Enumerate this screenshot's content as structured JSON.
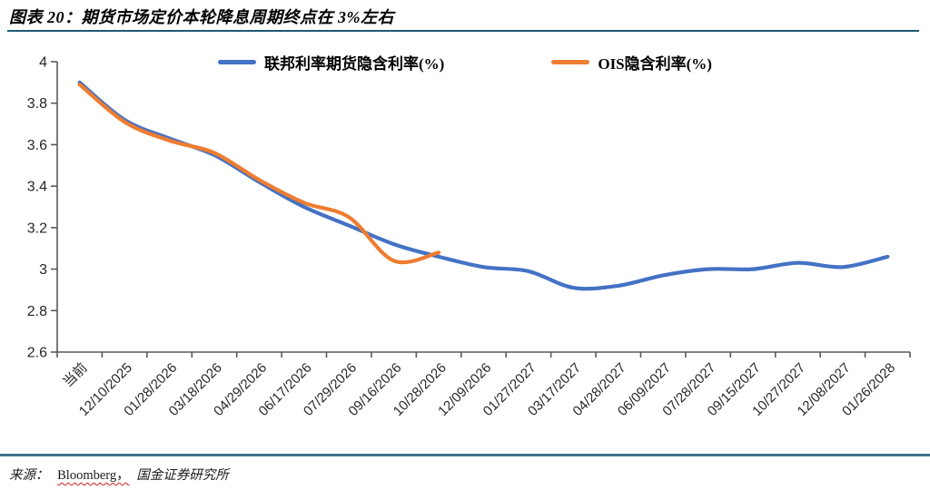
{
  "header": {
    "title": "图表 20：期货市场定价本轮降息周期终点在 3%左右"
  },
  "footer": {
    "source_prefix": "来源：",
    "source_bloomberg": "Bloomberg，",
    "source_institution": "国金证券研究所"
  },
  "colors": {
    "series_blue": "#4472C4",
    "series_orange": "#ED7D31",
    "header_rule": "#1C5A78",
    "footer_rule": "#44708A",
    "axis": "#595959",
    "tick_label": "#262626"
  },
  "chart_data": {
    "type": "line",
    "title": "期货市场定价本轮降息周期终点在3%左右",
    "xlabel": "",
    "ylabel": "",
    "ylim": [
      2.6,
      4.0
    ],
    "ytick_step": 0.2,
    "ytick_labels": [
      "4",
      "3.8",
      "3.6",
      "3.4",
      "3.2",
      "3",
      "2.8",
      "2.6"
    ],
    "grid": false,
    "legend_position": "top",
    "categories": [
      "当前",
      "12/10/2025",
      "01/28/2026",
      "03/18/2026",
      "04/29/2026",
      "06/17/2026",
      "07/29/2026",
      "09/16/2026",
      "10/28/2026",
      "12/09/2026",
      "01/27/2027",
      "03/17/2027",
      "04/28/2027",
      "06/09/2027",
      "07/28/2027",
      "09/15/2027",
      "10/27/2027",
      "12/08/2027",
      "01/26/2028"
    ],
    "series": [
      {
        "name": "联邦利率期货隐含利率(%)",
        "color": "#4472C4",
        "values": [
          3.9,
          3.72,
          3.63,
          3.55,
          3.42,
          3.3,
          3.21,
          3.12,
          3.06,
          3.01,
          2.99,
          2.91,
          2.92,
          2.97,
          3.0,
          3.0,
          3.03,
          3.01,
          3.06
        ]
      },
      {
        "name": "OIS隐含利率(%)",
        "color": "#ED7D31",
        "values": [
          3.89,
          3.71,
          3.62,
          3.56,
          3.43,
          3.32,
          3.25,
          3.04,
          3.08,
          null,
          null,
          null,
          null,
          null,
          null,
          null,
          null,
          null,
          null
        ]
      }
    ]
  }
}
